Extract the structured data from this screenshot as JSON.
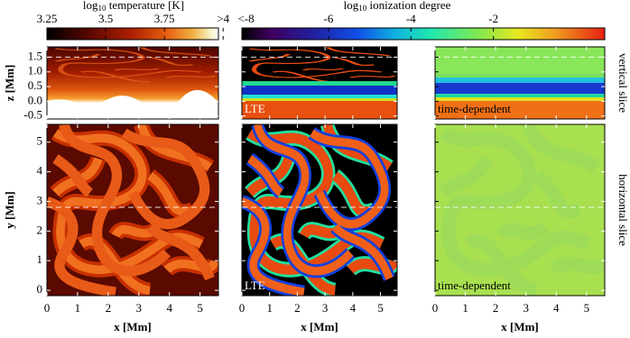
{
  "colorbars": [
    {
      "title": {
        "base": "log",
        "sub": "10",
        "rest": " temperature [K]"
      },
      "lim": [
        3.25,
        3.98
      ],
      "ticks": [
        3.25,
        3.5,
        3.75,
        {
          "value": 4,
          "label": ">4"
        }
      ]
    },
    {
      "title": {
        "base": "log",
        "sub": "10",
        "rest": " ionization degree"
      },
      "lim": [
        -8.1,
        0.7
      ],
      "ticks": [
        {
          "value": -8,
          "label": "<-8"
        },
        -6,
        -4,
        -2
      ]
    }
  ],
  "x_axis": {
    "label": "x [Mm]",
    "lim": [
      0,
      5.6
    ],
    "ticks": [
      0,
      1,
      2,
      3,
      4,
      5
    ]
  },
  "z_axis": {
    "label": "z [Mm]",
    "lim": [
      -0.6,
      1.85
    ],
    "ticks": [
      1.5,
      {
        "value": 1,
        "label": "1.0"
      },
      0.5,
      {
        "value": 0,
        "label": "0.0"
      },
      -0.5
    ]
  },
  "y_axis": {
    "label": "y [Mm]",
    "lim": [
      -0.18,
      5.6
    ],
    "ticks": [
      0,
      1,
      2,
      3,
      4,
      5
    ]
  },
  "rows": [
    {
      "side_label": "vertical slice",
      "middle": "LTE",
      "right": "time-dependent",
      "slice_line": 1.5
    },
    {
      "side_label": "horizontal slice",
      "middle": "LTE",
      "right": "time-dependent",
      "slice_line": 2.8
    }
  ]
}
